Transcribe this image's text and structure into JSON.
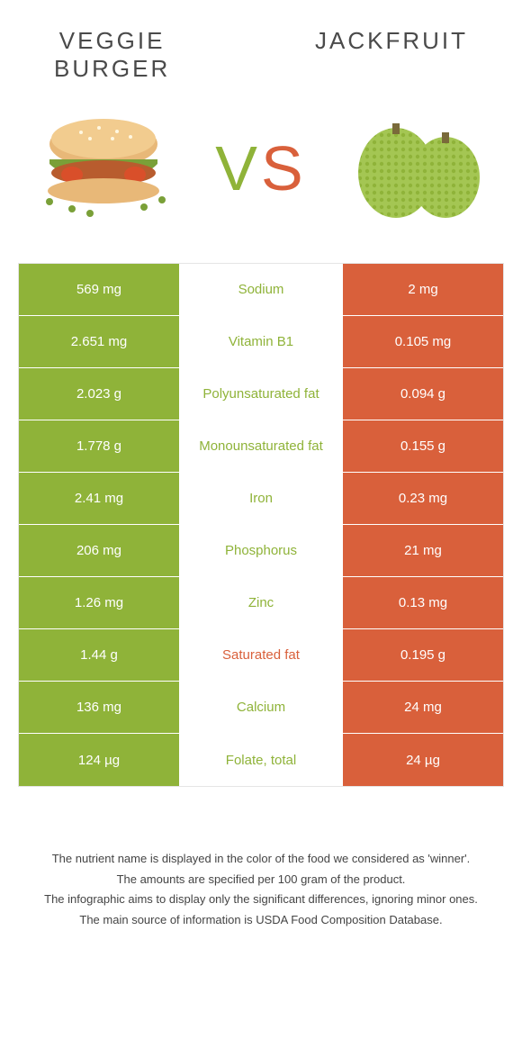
{
  "header": {
    "left_title": "Veggie\nburger",
    "right_title": "Jackfruit",
    "vs_v": "V",
    "vs_s": "S"
  },
  "colors": {
    "left": "#8fb339",
    "right": "#d9603b"
  },
  "rows": [
    {
      "left": "569 mg",
      "label": "Sodium",
      "right": "2 mg",
      "winner": "left"
    },
    {
      "left": "2.651 mg",
      "label": "Vitamin B1",
      "right": "0.105 mg",
      "winner": "left"
    },
    {
      "left": "2.023 g",
      "label": "Polyunsaturated fat",
      "right": "0.094 g",
      "winner": "left"
    },
    {
      "left": "1.778 g",
      "label": "Monounsaturated fat",
      "right": "0.155 g",
      "winner": "left"
    },
    {
      "left": "2.41 mg",
      "label": "Iron",
      "right": "0.23 mg",
      "winner": "left"
    },
    {
      "left": "206 mg",
      "label": "Phosphorus",
      "right": "21 mg",
      "winner": "left"
    },
    {
      "left": "1.26 mg",
      "label": "Zinc",
      "right": "0.13 mg",
      "winner": "left"
    },
    {
      "left": "1.44 g",
      "label": "Saturated fat",
      "right": "0.195 g",
      "winner": "right"
    },
    {
      "left": "136 mg",
      "label": "Calcium",
      "right": "24 mg",
      "winner": "left"
    },
    {
      "left": "124 µg",
      "label": "Folate, total",
      "right": "24 µg",
      "winner": "left"
    }
  ],
  "footnotes": [
    "The nutrient name is displayed in the color of the food we considered as 'winner'.",
    "The amounts are specified per 100 gram of the product.",
    "The infographic aims to display only the significant differences, ignoring minor ones.",
    "The main source of information is USDA Food Composition Database."
  ]
}
